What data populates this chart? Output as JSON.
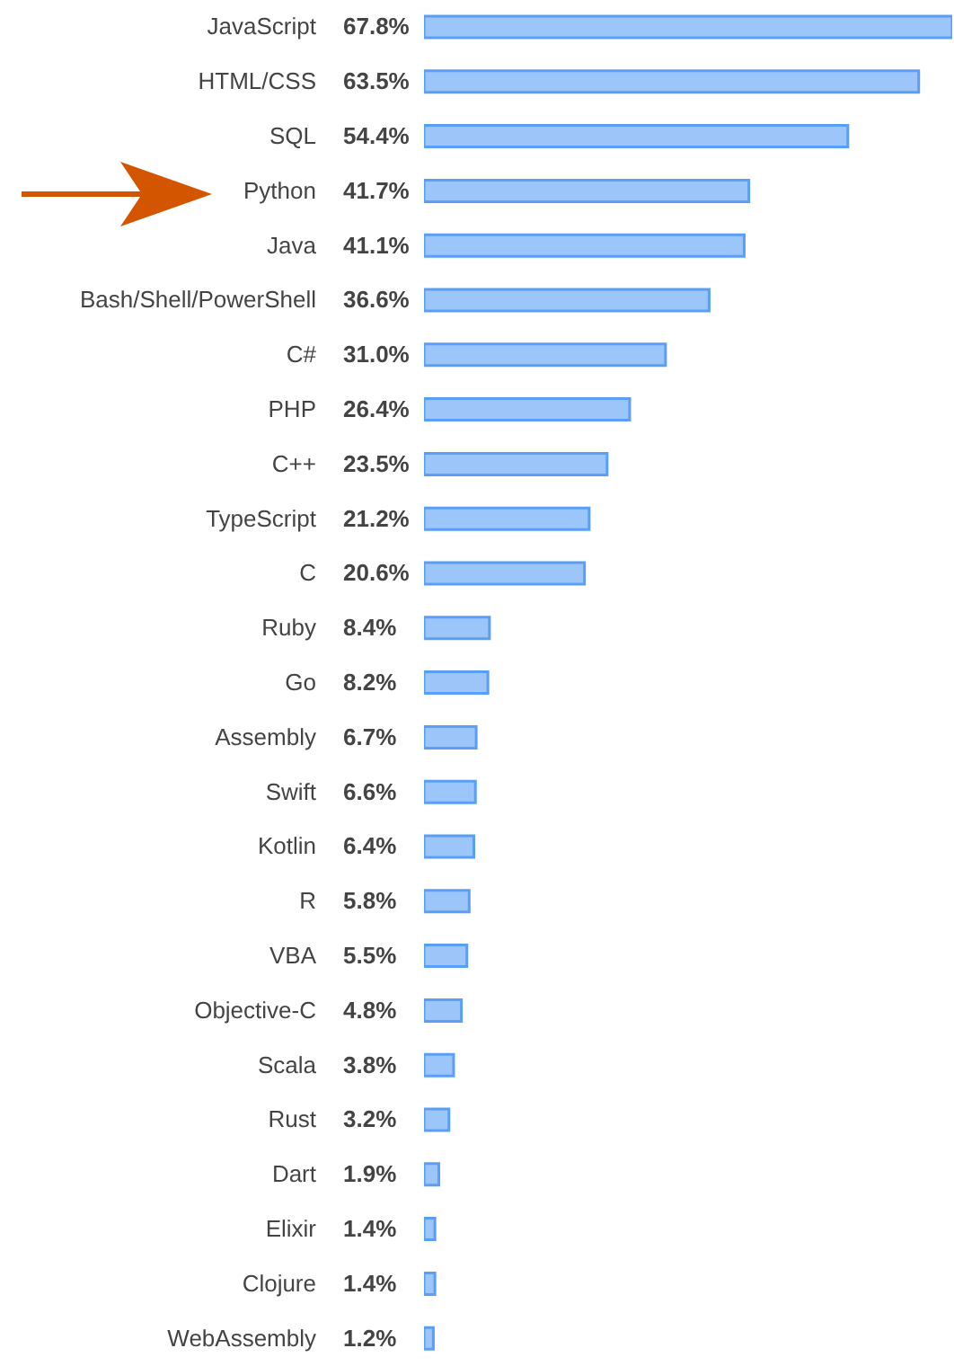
{
  "chart_data": {
    "type": "bar",
    "orientation": "horizontal",
    "color": "#5a9ef7",
    "categories": [
      "JavaScript",
      "HTML/CSS",
      "SQL",
      "Python",
      "Java",
      "Bash/Shell/PowerShell",
      "C#",
      "PHP",
      "C++",
      "TypeScript",
      "C",
      "Ruby",
      "Go",
      "Assembly",
      "Swift",
      "Kotlin",
      "R",
      "VBA",
      "Objective-C",
      "Scala",
      "Rust",
      "Dart",
      "Elixir",
      "Clojure",
      "WebAssembly"
    ],
    "values": [
      67.8,
      63.5,
      54.4,
      41.7,
      41.1,
      36.6,
      31.0,
      26.4,
      23.5,
      21.2,
      20.6,
      8.4,
      8.2,
      6.7,
      6.6,
      6.4,
      5.8,
      5.5,
      4.8,
      3.8,
      3.2,
      1.9,
      1.4,
      1.4,
      1.2
    ],
    "value_labels": [
      "67.8%",
      "63.5%",
      "54.4%",
      "41.7%",
      "41.1%",
      "36.6%",
      "31.0%",
      "26.4%",
      "23.5%",
      "21.2%",
      "20.6%",
      "8.4%",
      "8.2%",
      "6.7%",
      "6.6%",
      "6.4%",
      "5.8%",
      "5.5%",
      "4.8%",
      "3.8%",
      "3.2%",
      "1.9%",
      "1.4%",
      "1.4%",
      "1.2%"
    ],
    "grid": false,
    "legend": false
  }
}
